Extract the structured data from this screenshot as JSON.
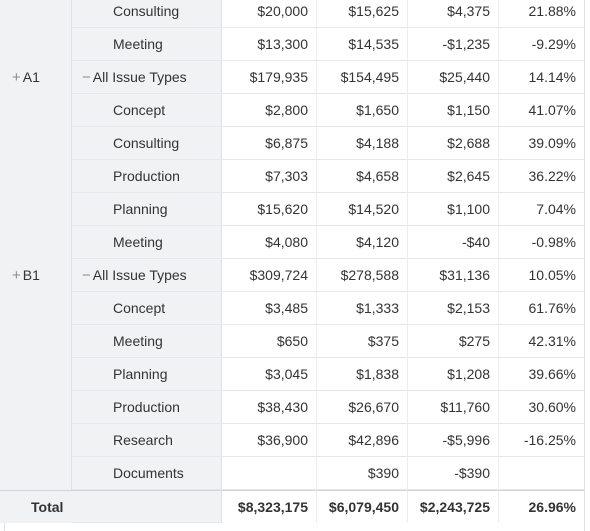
{
  "rows": [
    {
      "group": "",
      "type": "Consulting",
      "kind": "sub",
      "v": [
        "$20,000",
        "$15,625",
        "$4,375",
        "21.88%"
      ]
    },
    {
      "group": "",
      "type": "Meeting",
      "kind": "sub",
      "v": [
        "$13,300",
        "$14,535",
        "-$1,235",
        "-9.29%"
      ]
    },
    {
      "group": "A1",
      "type": "All Issue Types",
      "kind": "all",
      "v": [
        "$179,935",
        "$154,495",
        "$25,440",
        "14.14%"
      ]
    },
    {
      "group": "",
      "type": "Concept",
      "kind": "sub",
      "v": [
        "$2,800",
        "$1,650",
        "$1,150",
        "41.07%"
      ]
    },
    {
      "group": "",
      "type": "Consulting",
      "kind": "sub",
      "v": [
        "$6,875",
        "$4,188",
        "$2,688",
        "39.09%"
      ]
    },
    {
      "group": "",
      "type": "Production",
      "kind": "sub",
      "v": [
        "$7,303",
        "$4,658",
        "$2,645",
        "36.22%"
      ]
    },
    {
      "group": "",
      "type": "Planning",
      "kind": "sub",
      "v": [
        "$15,620",
        "$14,520",
        "$1,100",
        "7.04%"
      ]
    },
    {
      "group": "",
      "type": "Meeting",
      "kind": "sub",
      "v": [
        "$4,080",
        "$4,120",
        "-$40",
        "-0.98%"
      ]
    },
    {
      "group": "B1",
      "type": "All Issue Types",
      "kind": "all",
      "v": [
        "$309,724",
        "$278,588",
        "$31,136",
        "10.05%"
      ]
    },
    {
      "group": "",
      "type": "Concept",
      "kind": "sub",
      "v": [
        "$3,485",
        "$1,333",
        "$2,153",
        "61.76%"
      ]
    },
    {
      "group": "",
      "type": "Meeting",
      "kind": "sub",
      "v": [
        "$650",
        "$375",
        "$275",
        "42.31%"
      ]
    },
    {
      "group": "",
      "type": "Planning",
      "kind": "sub",
      "v": [
        "$3,045",
        "$1,838",
        "$1,208",
        "39.66%"
      ]
    },
    {
      "group": "",
      "type": "Production",
      "kind": "sub",
      "v": [
        "$38,430",
        "$26,670",
        "$11,760",
        "30.60%"
      ]
    },
    {
      "group": "",
      "type": "Research",
      "kind": "sub",
      "v": [
        "$36,900",
        "$42,896",
        "-$5,996",
        "-16.25%"
      ]
    },
    {
      "group": "",
      "type": "Documents",
      "kind": "sub",
      "v": [
        "",
        "$390",
        "-$390",
        ""
      ]
    }
  ],
  "total": {
    "label": "Total",
    "v": [
      "$8,323,175",
      "$6,079,450",
      "$2,243,725",
      "26.96%"
    ]
  },
  "icons": {
    "expand": "+",
    "collapse": "−"
  }
}
